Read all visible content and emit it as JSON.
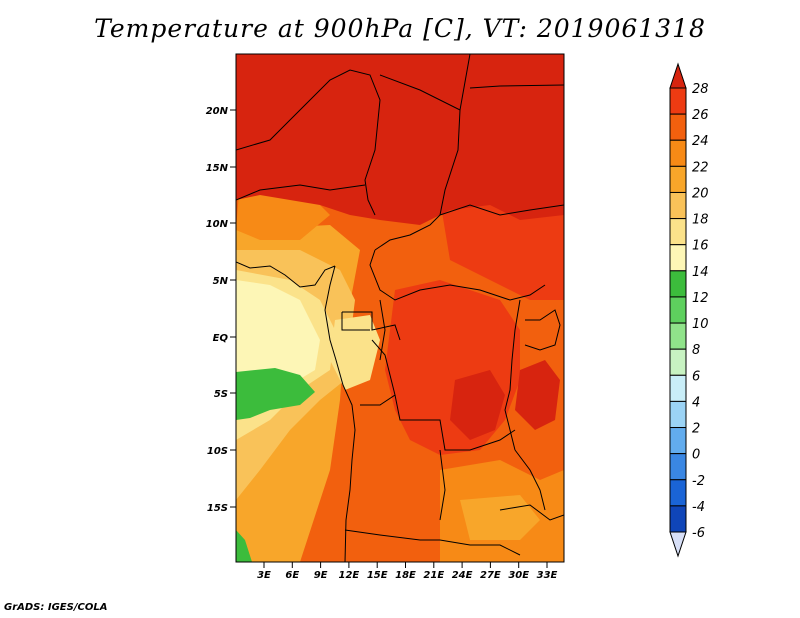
{
  "title": "Temperature at 900hPa [C], VT: 2019061318",
  "footer": "GrADS: IGES/COLA",
  "map": {
    "lat_labels": [
      "20N",
      "15N",
      "10N",
      "5N",
      "EQ",
      "5S",
      "10S",
      "15S"
    ],
    "lon_labels": [
      "3E",
      "6E",
      "9E",
      "12E",
      "15E",
      "18E",
      "21E",
      "24E",
      "27E",
      "30E",
      "33E"
    ]
  },
  "colorbar": {
    "levels": [
      "28",
      "26",
      "24",
      "22",
      "20",
      "18",
      "16",
      "14",
      "12",
      "10",
      "8",
      "6",
      "4",
      "2",
      "0",
      "-2",
      "-4",
      "-6"
    ],
    "colors": [
      "#d7240f",
      "#ed3b12",
      "#f2600e",
      "#f78a16",
      "#f8a62a",
      "#f9c259",
      "#fbe28a",
      "#fdf6b6",
      "#3cbc3c",
      "#5ed05e",
      "#90e38a",
      "#c8f3c2",
      "#c9eef8",
      "#9bd3f5",
      "#62acee",
      "#3a87e3",
      "#1a64d6",
      "#0f45b8",
      "#0b2b99",
      "#0a1778",
      "#d7dff7"
    ]
  }
}
